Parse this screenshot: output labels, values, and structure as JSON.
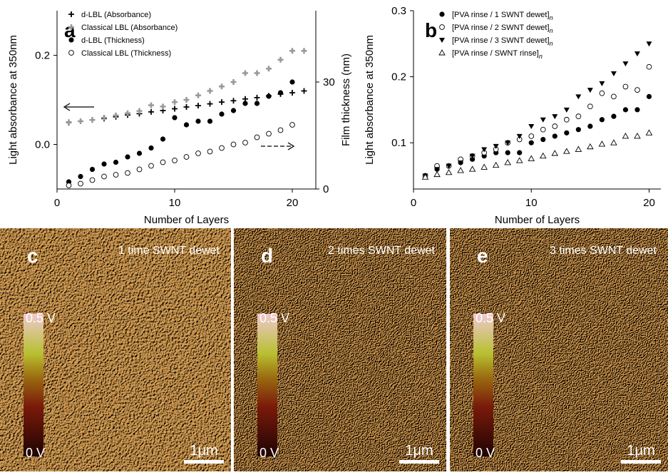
{
  "chart_data": [
    {
      "type": "scatter",
      "panel": "a",
      "xlabel": "Number of Layers",
      "ylabel": "Light absorbance at 350nm",
      "y2label": "Film thickness (nm)",
      "xlim": [
        0,
        22
      ],
      "xticks": [
        0,
        10,
        20
      ],
      "ylim": [
        -0.1,
        0.3
      ],
      "yticks": [
        {
          "value": 0,
          "label": "0.0"
        },
        0.2
      ],
      "y2lim": [
        0,
        50
      ],
      "y2ticks": [
        0,
        30
      ],
      "series": [
        {
          "name": "d-LBL (Absorbance)",
          "color": "#000000",
          "marker": "plus",
          "x": [
            1,
            2,
            3,
            4,
            5,
            6,
            7,
            8,
            9,
            10,
            11,
            12,
            13,
            14,
            15,
            16,
            17,
            18,
            19,
            20,
            21
          ],
          "values": [
            0.049,
            0.052,
            0.055,
            0.058,
            0.062,
            0.066,
            0.069,
            0.073,
            0.076,
            0.08,
            0.084,
            0.087,
            0.091,
            0.095,
            0.098,
            0.102,
            0.105,
            0.109,
            0.113,
            0.116,
            0.12
          ]
        },
        {
          "name": "Classical LBL (Absorbance)",
          "color": "#999999",
          "marker": "cross",
          "x": [
            1,
            2,
            3,
            4,
            5,
            6,
            7,
            8,
            9,
            10,
            11,
            12,
            13,
            14,
            15,
            16,
            17,
            18,
            19,
            20,
            21
          ],
          "values": [
            0.05,
            0.052,
            0.055,
            0.06,
            0.065,
            0.07,
            0.075,
            0.088,
            0.085,
            0.095,
            0.1,
            0.11,
            0.12,
            0.13,
            0.14,
            0.16,
            0.16,
            0.17,
            0.19,
            0.21,
            0.21
          ]
        },
        {
          "name": "d-LBL (Thickness)",
          "color": "#000000",
          "marker": "dot",
          "axis": "y2",
          "x": [
            1,
            2,
            3,
            4,
            5,
            6,
            7,
            8,
            9,
            10,
            11,
            12,
            13,
            14,
            15,
            16,
            17,
            18,
            19,
            20
          ],
          "values": [
            2,
            3.5,
            5.5,
            7,
            7.5,
            9,
            10,
            11.5,
            14,
            20,
            18,
            19,
            19,
            21,
            22,
            24,
            24,
            26,
            27,
            30
          ]
        },
        {
          "name": "Classical LBL (Thickness)",
          "color": "#000000",
          "marker": "ring",
          "axis": "y2",
          "x": [
            1,
            2,
            3,
            4,
            5,
            6,
            7,
            8,
            9,
            10,
            11,
            12,
            13,
            14,
            15,
            16,
            17,
            18,
            19,
            20
          ],
          "values": [
            1,
            1.5,
            2.5,
            3.5,
            4,
            4.5,
            5.5,
            6.5,
            7.5,
            8,
            9,
            10,
            10.5,
            11.5,
            12.5,
            13,
            14.5,
            15.5,
            16.5,
            18
          ]
        }
      ]
    },
    {
      "type": "scatter",
      "panel": "b",
      "xlabel": "Number of Layers",
      "ylabel": "Light absorbance at 350nm",
      "legend_subscript": "n",
      "xlim": [
        0,
        21
      ],
      "xticks": [
        0,
        10,
        20
      ],
      "ylim": [
        0.03,
        0.3
      ],
      "yticks": [
        0.1,
        0.2,
        0.3
      ],
      "series": [
        {
          "name": "[PVA rinse / 1 SWNT dewet]",
          "color": "#000000",
          "marker": "dot",
          "x": [
            1,
            2,
            3,
            4,
            5,
            6,
            7,
            8,
            9,
            10,
            11,
            12,
            13,
            14,
            15,
            16,
            17,
            18,
            19,
            20
          ],
          "values": [
            0.05,
            0.06,
            0.065,
            0.07,
            0.075,
            0.08,
            0.085,
            0.085,
            0.085,
            0.1,
            0.105,
            0.11,
            0.115,
            0.12,
            0.125,
            0.135,
            0.14,
            0.15,
            0.15,
            0.17
          ]
        },
        {
          "name": "[PVA rinse / 2 SWNT dewet]",
          "color": "#000000",
          "marker": "ring",
          "x": [
            1,
            2,
            3,
            4,
            5,
            6,
            7,
            8,
            9,
            10,
            11,
            12,
            13,
            14,
            15,
            16,
            17,
            18,
            19,
            20
          ],
          "values": [
            0.05,
            0.065,
            0.065,
            0.075,
            0.08,
            0.085,
            0.09,
            0.1,
            0.105,
            0.11,
            0.12,
            0.125,
            0.135,
            0.14,
            0.155,
            0.175,
            0.17,
            0.185,
            0.18,
            0.215
          ]
        },
        {
          "name": "[PVA rinse / 3 SWNT dewet]",
          "color": "#000000",
          "marker": "tridown",
          "x": [
            1,
            2,
            3,
            4,
            5,
            6,
            7,
            8,
            9,
            10,
            11,
            12,
            13,
            14,
            15,
            16,
            17,
            18,
            19,
            20
          ],
          "values": [
            0.05,
            0.06,
            0.065,
            0.07,
            0.08,
            0.09,
            0.095,
            0.1,
            0.11,
            0.125,
            0.135,
            0.14,
            0.15,
            0.17,
            0.18,
            0.19,
            0.205,
            0.22,
            0.235,
            0.25
          ]
        },
        {
          "name": "[PVA rinse / SWNT rinse]",
          "color": "#000000",
          "marker": "triup",
          "x": [
            1,
            2,
            3,
            4,
            5,
            6,
            7,
            8,
            9,
            10,
            11,
            12,
            13,
            14,
            15,
            16,
            17,
            18,
            19,
            20
          ],
          "values": [
            0.048,
            0.052,
            0.055,
            0.058,
            0.06,
            0.063,
            0.066,
            0.07,
            0.073,
            0.076,
            0.08,
            0.084,
            0.087,
            0.09,
            0.094,
            0.098,
            0.1,
            0.11,
            0.11,
            0.115
          ]
        }
      ]
    }
  ],
  "panels": [
    {
      "letter": "c",
      "title": "1 time SWNT dewet",
      "scale_max": "0.5 V",
      "scale_min": "0 V",
      "scale_bar": "1μm"
    },
    {
      "letter": "d",
      "title": "2 times SWNT dewet",
      "scale_max": "0.5 V",
      "scale_min": "0 V",
      "scale_bar": "1μm"
    },
    {
      "letter": "e",
      "title": "3 times SWNT dewet",
      "scale_max": "0.5 V",
      "scale_min": "0 V",
      "scale_bar": "1μm"
    }
  ]
}
